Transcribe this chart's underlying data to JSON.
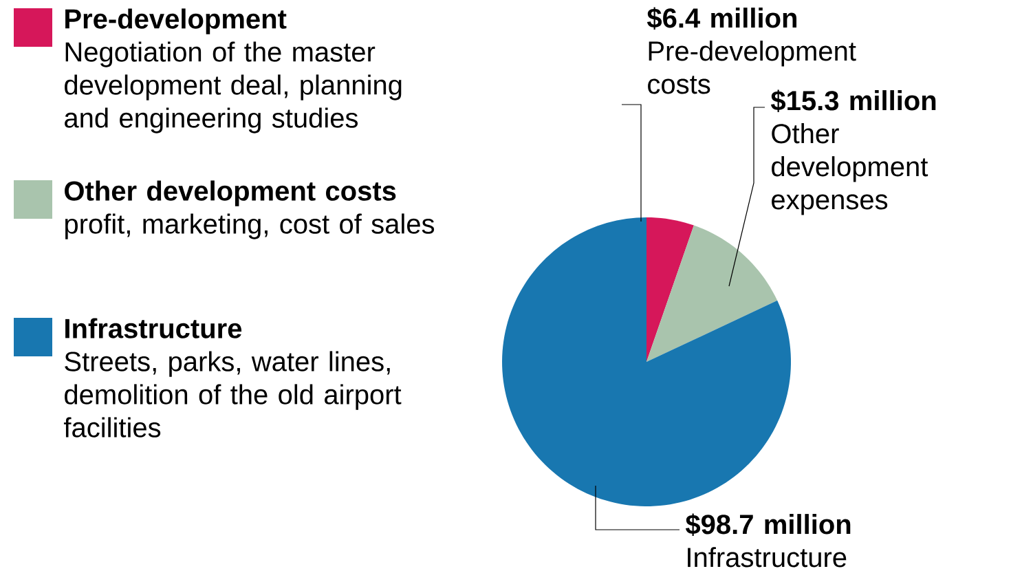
{
  "chart_data": {
    "type": "pie",
    "categories": [
      "Pre-development",
      "Other development costs",
      "Infrastructure"
    ],
    "values": [
      6.4,
      15.3,
      98.7
    ],
    "colors": [
      "#d6175a",
      "#a9c4ad",
      "#1877b0"
    ],
    "value_labels": [
      "$6.4 million",
      "$15.3 million",
      "$98.7 million"
    ],
    "annotations": [
      "Pre-development costs",
      "Other development expenses",
      "Infrastructure",
      "Negotiation of the master development deal, planning and engineering studies",
      "profit, marketing, cost of sales",
      "Streets, parks, water lines, demolition of the old airport facilities"
    ],
    "legend": "left"
  }
}
